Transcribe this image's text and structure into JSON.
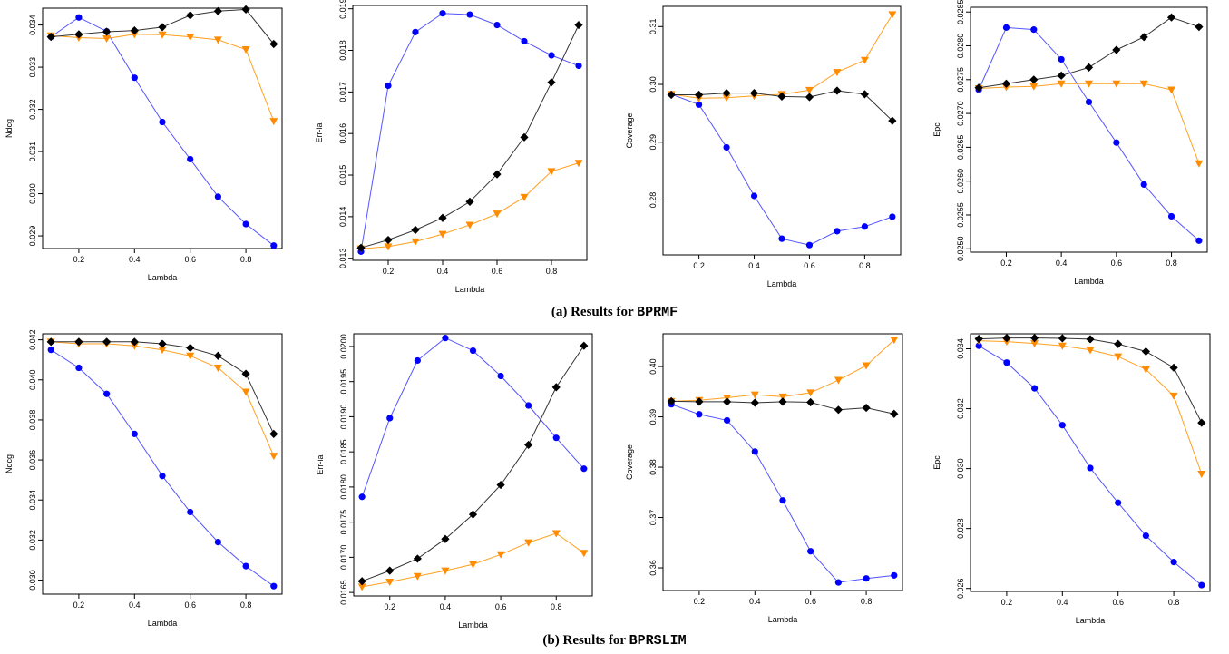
{
  "figure": {
    "captions": [
      {
        "prefix": "(a) Results for ",
        "code": "BPRMF"
      },
      {
        "prefix": "(b) Results for ",
        "code": "BPRSLIM"
      }
    ]
  },
  "colors": {
    "blue": "#0000ff",
    "orange": "#ff8c00",
    "black": "#000000",
    "blue_line": "#5555ff",
    "orange_line": "#ffa020",
    "black_line": "#333333"
  },
  "chart_data": [
    {
      "type": "line",
      "group": "BPRMF",
      "xlabel": "Lambda",
      "ylabel": "Ndcg",
      "x": [
        0.1,
        0.2,
        0.3,
        0.4,
        0.5,
        0.6,
        0.7,
        0.8,
        0.9
      ],
      "xticks": [
        "0.2",
        "0.4",
        "0.6",
        "0.8"
      ],
      "ylim": [
        0.0287,
        0.0344
      ],
      "yticks": [
        "0.029",
        "0.030",
        "0.031",
        "0.032",
        "0.033",
        "0.034"
      ],
      "series": [
        {
          "color": "blue",
          "marker": "circle",
          "values": [
            0.03372,
            0.03418,
            0.03385,
            0.03275,
            0.0317,
            0.03082,
            0.02993,
            0.02928,
            0.02877
          ]
        },
        {
          "color": "orange",
          "marker": "triangle",
          "values": [
            0.03375,
            0.0337,
            0.03368,
            0.03378,
            0.03377,
            0.03372,
            0.03365,
            0.03342,
            0.03172
          ]
        },
        {
          "color": "black",
          "marker": "diamond",
          "values": [
            0.03372,
            0.03378,
            0.03384,
            0.03387,
            0.03395,
            0.03423,
            0.03433,
            0.03437,
            0.03355
          ]
        }
      ]
    },
    {
      "type": "line",
      "group": "BPRMF",
      "xlabel": "Lambda",
      "ylabel": "Err-ia",
      "x": [
        0.1,
        0.2,
        0.3,
        0.4,
        0.5,
        0.6,
        0.7,
        0.8,
        0.9
      ],
      "xticks": [
        "0.2",
        "0.4",
        "0.6",
        "0.8"
      ],
      "ylim": [
        0.01295,
        0.01908
      ],
      "yticks": [
        "0.013",
        "0.014",
        "0.015",
        "0.016",
        "0.017",
        "0.018",
        "0.019"
      ],
      "series": [
        {
          "color": "blue",
          "marker": "circle",
          "values": [
            0.01316,
            0.01715,
            0.01844,
            0.01889,
            0.01886,
            0.01861,
            0.01822,
            0.01788,
            0.01763
          ]
        },
        {
          "color": "orange",
          "marker": "triangle",
          "values": [
            0.01323,
            0.01328,
            0.0134,
            0.01358,
            0.0138,
            0.01407,
            0.01447,
            0.01509,
            0.01529
          ]
        },
        {
          "color": "black",
          "marker": "diamond",
          "values": [
            0.01325,
            0.01344,
            0.01368,
            0.01397,
            0.01436,
            0.01502,
            0.01591,
            0.01723,
            0.01861
          ]
        }
      ]
    },
    {
      "type": "line",
      "group": "BPRMF",
      "xlabel": "Lambda",
      "ylabel": "Coverage",
      "x": [
        0.1,
        0.2,
        0.3,
        0.4,
        0.5,
        0.6,
        0.7,
        0.8,
        0.9
      ],
      "xticks": [
        "0.2",
        "0.4",
        "0.6",
        "0.8"
      ],
      "ylim": [
        0.2705,
        0.3135
      ],
      "yticks": [
        "0.28",
        "0.29",
        "0.30",
        "0.31"
      ],
      "series": [
        {
          "color": "blue",
          "marker": "circle",
          "values": [
            0.2983,
            0.2965,
            0.2891,
            0.2807,
            0.2733,
            0.2722,
            0.2746,
            0.2754,
            0.2771
          ]
        },
        {
          "color": "orange",
          "marker": "triangle",
          "values": [
            0.2983,
            0.2976,
            0.2977,
            0.298,
            0.2983,
            0.299,
            0.3021,
            0.3042,
            0.3121
          ]
        },
        {
          "color": "black",
          "marker": "diamond",
          "values": [
            0.2982,
            0.2982,
            0.2985,
            0.2985,
            0.2979,
            0.2978,
            0.2989,
            0.2983,
            0.2937
          ]
        }
      ]
    },
    {
      "type": "line",
      "group": "BPRMF",
      "xlabel": "Lambda",
      "ylabel": "Epc",
      "x": [
        0.1,
        0.2,
        0.3,
        0.4,
        0.5,
        0.6,
        0.7,
        0.8,
        0.9
      ],
      "xticks": [
        "0.2",
        "0.4",
        "0.6",
        "0.8"
      ],
      "ylim": [
        0.02495,
        0.02857
      ],
      "yticks": [
        "0.0250",
        "0.0255",
        "0.0260",
        "0.0265",
        "0.0270",
        "0.0275",
        "0.0280",
        "0.0285"
      ],
      "series": [
        {
          "color": "blue",
          "marker": "circle",
          "values": [
            0.02735,
            0.02827,
            0.02824,
            0.0278,
            0.02717,
            0.02657,
            0.02595,
            0.02548,
            0.02512
          ]
        },
        {
          "color": "orange",
          "marker": "triangle",
          "values": [
            0.02737,
            0.02739,
            0.0274,
            0.02744,
            0.02744,
            0.02744,
            0.02744,
            0.02735,
            0.02626
          ]
        },
        {
          "color": "black",
          "marker": "diamond",
          "values": [
            0.02738,
            0.02744,
            0.0275,
            0.02756,
            0.02768,
            0.02794,
            0.02813,
            0.02842,
            0.02828
          ]
        }
      ]
    },
    {
      "type": "line",
      "group": "BPRSLIM",
      "xlabel": "Lambda",
      "ylabel": "Ndcg",
      "x": [
        0.1,
        0.2,
        0.3,
        0.4,
        0.5,
        0.6,
        0.7,
        0.8,
        0.9
      ],
      "xticks": [
        "0.2",
        "0.4",
        "0.6",
        "0.8"
      ],
      "ylim": [
        0.0293,
        0.0423
      ],
      "yticks": [
        "0.030",
        "0.032",
        "0.034",
        "0.036",
        "0.038",
        "0.040",
        "0.042"
      ],
      "series": [
        {
          "color": "blue",
          "marker": "circle",
          "values": [
            0.0415,
            0.0406,
            0.0393,
            0.0373,
            0.0352,
            0.0334,
            0.0319,
            0.0307,
            0.0297
          ]
        },
        {
          "color": "orange",
          "marker": "triangle",
          "values": [
            0.0419,
            0.0418,
            0.0418,
            0.0417,
            0.0415,
            0.0412,
            0.0406,
            0.0394,
            0.0362
          ]
        },
        {
          "color": "black",
          "marker": "diamond",
          "values": [
            0.0419,
            0.0419,
            0.0419,
            0.0419,
            0.0418,
            0.0416,
            0.0412,
            0.0403,
            0.0373
          ]
        }
      ]
    },
    {
      "type": "line",
      "group": "BPRSLIM",
      "xlabel": "Lambda",
      "ylabel": "Err-ia",
      "x": [
        0.1,
        0.2,
        0.3,
        0.4,
        0.5,
        0.6,
        0.7,
        0.8,
        0.9
      ],
      "xticks": [
        "0.2",
        "0.4",
        "0.6",
        "0.8"
      ],
      "ylim": [
        0.01645,
        0.02018
      ],
      "yticks": [
        "0.0165",
        "0.0170",
        "0.0175",
        "0.0180",
        "0.0185",
        "0.0190",
        "0.0195",
        "0.0200"
      ],
      "series": [
        {
          "color": "blue",
          "marker": "circle",
          "values": [
            0.01786,
            0.01898,
            0.0198,
            0.02012,
            0.01994,
            0.01958,
            0.01916,
            0.0187,
            0.01826
          ]
        },
        {
          "color": "orange",
          "marker": "triangle",
          "values": [
            0.01658,
            0.01665,
            0.01673,
            0.01681,
            0.0169,
            0.01704,
            0.01721,
            0.01734,
            0.01706
          ]
        },
        {
          "color": "black",
          "marker": "diamond",
          "values": [
            0.01666,
            0.01681,
            0.01698,
            0.01726,
            0.01761,
            0.01803,
            0.0186,
            0.01942,
            0.02001
          ]
        }
      ]
    },
    {
      "type": "line",
      "group": "BPRSLIM",
      "xlabel": "Lambda",
      "ylabel": "Coverage",
      "x": [
        0.1,
        0.2,
        0.3,
        0.4,
        0.5,
        0.6,
        0.7,
        0.8,
        0.9
      ],
      "xticks": [
        "0.2",
        "0.4",
        "0.6",
        "0.8"
      ],
      "ylim": [
        0.3555,
        0.4065
      ],
      "yticks": [
        "0.36",
        "0.37",
        "0.38",
        "0.39",
        "0.40"
      ],
      "series": [
        {
          "color": "blue",
          "marker": "circle",
          "values": [
            0.3925,
            0.3905,
            0.3893,
            0.3831,
            0.3734,
            0.3633,
            0.3571,
            0.3579,
            0.3585
          ]
        },
        {
          "color": "orange",
          "marker": "triangle",
          "values": [
            0.3931,
            0.3933,
            0.3938,
            0.3944,
            0.394,
            0.3948,
            0.3973,
            0.4002,
            0.4053
          ]
        },
        {
          "color": "black",
          "marker": "diamond",
          "values": [
            0.3931,
            0.393,
            0.393,
            0.3928,
            0.393,
            0.3929,
            0.3914,
            0.3918,
            0.3906
          ]
        }
      ]
    },
    {
      "type": "line",
      "group": "BPRSLIM",
      "xlabel": "Lambda",
      "ylabel": "Epc",
      "x": [
        0.1,
        0.2,
        0.3,
        0.4,
        0.5,
        0.6,
        0.7,
        0.8,
        0.9
      ],
      "xticks": [
        "0.2",
        "0.4",
        "0.6",
        "0.8"
      ],
      "ylim": [
        0.0259,
        0.0345
      ],
      "yticks": [
        "0.026",
        "0.028",
        "0.030",
        "0.032",
        "0.034"
      ],
      "series": [
        {
          "color": "blue",
          "marker": "circle",
          "values": [
            0.0341,
            0.03354,
            0.03268,
            0.03145,
            0.03002,
            0.02886,
            0.02776,
            0.02688,
            0.02611
          ]
        },
        {
          "color": "orange",
          "marker": "triangle",
          "values": [
            0.03427,
            0.03424,
            0.03418,
            0.0341,
            0.03396,
            0.03374,
            0.03331,
            0.03243,
            0.02982
          ]
        },
        {
          "color": "black",
          "marker": "diamond",
          "values": [
            0.03433,
            0.03436,
            0.03436,
            0.03435,
            0.03432,
            0.03416,
            0.03391,
            0.03337,
            0.03153
          ]
        }
      ]
    }
  ]
}
